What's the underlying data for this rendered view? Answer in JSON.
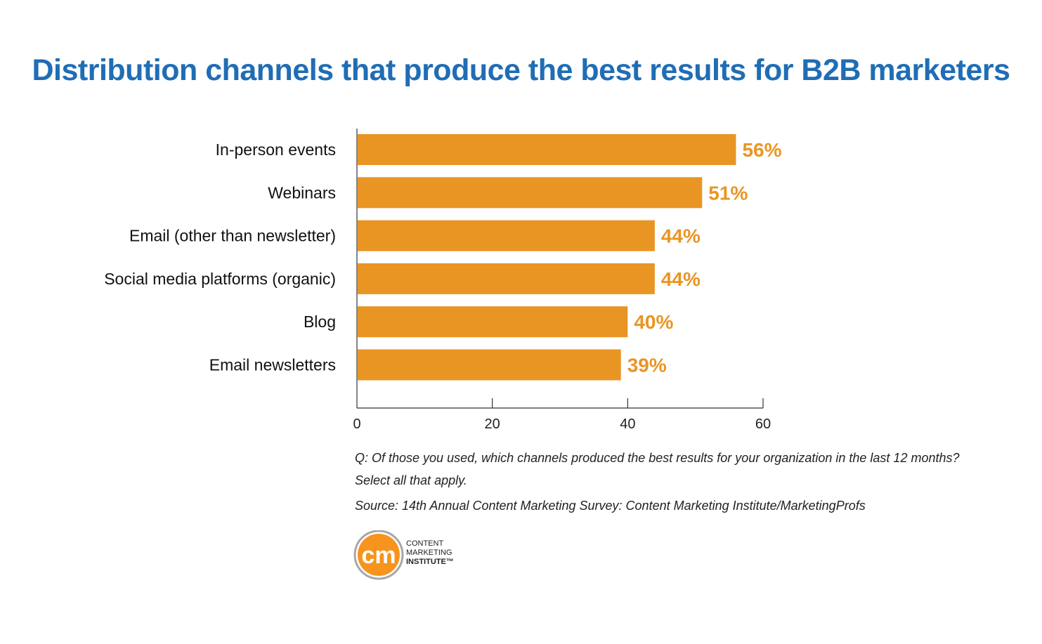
{
  "chart_data": {
    "type": "bar",
    "orientation": "horizontal",
    "title": "Distribution channels that produce the best results for B2B marketers",
    "categories": [
      "In-person events",
      "Webinars",
      "Email (other than newsletter)",
      "Social media platforms (organic)",
      "Blog",
      "Email newsletters"
    ],
    "values": [
      56,
      51,
      44,
      44,
      40,
      39
    ],
    "data_labels": [
      "56%",
      "51%",
      "44%",
      "44%",
      "40%",
      "39%"
    ],
    "xlim": [
      0,
      60
    ],
    "xticks": [
      "0",
      "20",
      "40",
      "60"
    ],
    "xtick_values": [
      0,
      20,
      40,
      60
    ],
    "xlabel": "",
    "ylabel": "",
    "grid": false,
    "bar_color": "#e99523",
    "label_color": "#e99523"
  },
  "notes": {
    "question_line1": "Q: Of those you used, which channels produced the best results for your organization in the last 12 months?",
    "question_line2": "Select all that apply.",
    "source": "Source: 14th Annual Content Marketing Survey: Content Marketing Institute/MarketingProfs"
  },
  "logo": {
    "mark": "cm",
    "line1": "CONTENT",
    "line2": "MARKETING",
    "line3": "INSTITUTE™"
  },
  "colors": {
    "title": "#1f6db5",
    "logo_orange": "#f7941d"
  }
}
